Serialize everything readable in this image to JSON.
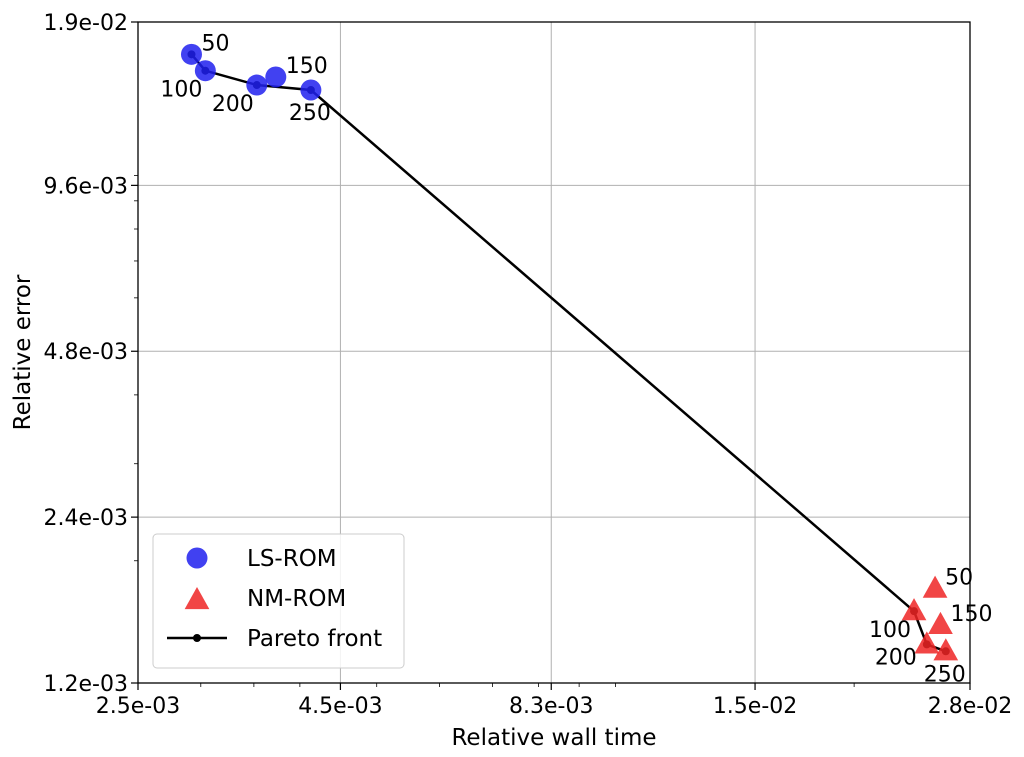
{
  "chart_data": {
    "type": "scatter",
    "title": "",
    "xlabel": "Relative wall time",
    "ylabel": "Relative error",
    "xscale": "log",
    "yscale": "log",
    "xlim": [
      0.0025,
      0.028
    ],
    "ylim": [
      0.0012,
      0.019
    ],
    "x_ticks": [
      {
        "value": 0.0025,
        "label": "2.5e-03"
      },
      {
        "value": 0.0045,
        "label": "4.5e-03"
      },
      {
        "value": 0.0083,
        "label": "8.3e-03"
      },
      {
        "value": 0.015,
        "label": "1.5e-02"
      },
      {
        "value": 0.028,
        "label": "2.8e-02"
      }
    ],
    "y_ticks": [
      {
        "value": 0.0012,
        "label": "1.2e-03"
      },
      {
        "value": 0.0024,
        "label": "2.4e-03"
      },
      {
        "value": 0.0048,
        "label": "4.8e-03"
      },
      {
        "value": 0.0096,
        "label": "9.6e-03"
      },
      {
        "value": 0.019,
        "label": "1.9e-02"
      }
    ],
    "grid": true,
    "legend_position": "bottom-left",
    "series": [
      {
        "name": "LS-ROM",
        "marker": "circle",
        "color": "#2020ee",
        "points": [
          {
            "x": 0.00292,
            "y": 0.0166,
            "label": "50"
          },
          {
            "x": 0.00304,
            "y": 0.0155,
            "label": "100"
          },
          {
            "x": 0.00373,
            "y": 0.0151,
            "label": "150"
          },
          {
            "x": 0.00353,
            "y": 0.0146,
            "label": "200"
          },
          {
            "x": 0.00413,
            "y": 0.0143,
            "label": "250"
          }
        ]
      },
      {
        "name": "NM-ROM",
        "marker": "triangle",
        "color": "#ee2525",
        "points": [
          {
            "x": 0.0253,
            "y": 0.00178,
            "label": "50"
          },
          {
            "x": 0.0238,
            "y": 0.00162,
            "label": "100"
          },
          {
            "x": 0.0257,
            "y": 0.00153,
            "label": "150"
          },
          {
            "x": 0.0247,
            "y": 0.00141,
            "label": "200"
          },
          {
            "x": 0.0261,
            "y": 0.00137,
            "label": "250"
          }
        ]
      },
      {
        "name": "Pareto front",
        "type": "line",
        "color": "#000000",
        "points": [
          {
            "x": 0.00292,
            "y": 0.0166
          },
          {
            "x": 0.00304,
            "y": 0.0155
          },
          {
            "x": 0.00353,
            "y": 0.0146
          },
          {
            "x": 0.00413,
            "y": 0.0143
          },
          {
            "x": 0.0238,
            "y": 0.00162
          },
          {
            "x": 0.0247,
            "y": 0.00141
          },
          {
            "x": 0.0261,
            "y": 0.00137
          }
        ]
      }
    ],
    "point_labels": [
      {
        "text": "50",
        "series": "LS-ROM",
        "x": 0.00292,
        "y": 0.0166,
        "pos": "above-right"
      },
      {
        "text": "100",
        "series": "LS-ROM",
        "x": 0.00304,
        "y": 0.0155,
        "pos": "below-left"
      },
      {
        "text": "150",
        "series": "LS-ROM",
        "x": 0.00373,
        "y": 0.0151,
        "pos": "above-right"
      },
      {
        "text": "200",
        "series": "LS-ROM",
        "x": 0.00353,
        "y": 0.0146,
        "pos": "below-left"
      },
      {
        "text": "250",
        "series": "LS-ROM",
        "x": 0.00413,
        "y": 0.0143,
        "pos": "below"
      },
      {
        "text": "50",
        "series": "NM-ROM",
        "x": 0.0253,
        "y": 0.00178,
        "pos": "above-right"
      },
      {
        "text": "100",
        "series": "NM-ROM",
        "x": 0.0238,
        "y": 0.00162,
        "pos": "below-left"
      },
      {
        "text": "150",
        "series": "NM-ROM",
        "x": 0.0257,
        "y": 0.00153,
        "pos": "above-right"
      },
      {
        "text": "200",
        "series": "NM-ROM",
        "x": 0.0247,
        "y": 0.00141,
        "pos": "left"
      },
      {
        "text": "250",
        "series": "NM-ROM",
        "x": 0.0261,
        "y": 0.00137,
        "pos": "below"
      }
    ],
    "legend": [
      {
        "label": "LS-ROM",
        "marker": "circle"
      },
      {
        "label": "NM-ROM",
        "marker": "triangle"
      },
      {
        "label": "Pareto front",
        "marker": "line"
      }
    ]
  }
}
